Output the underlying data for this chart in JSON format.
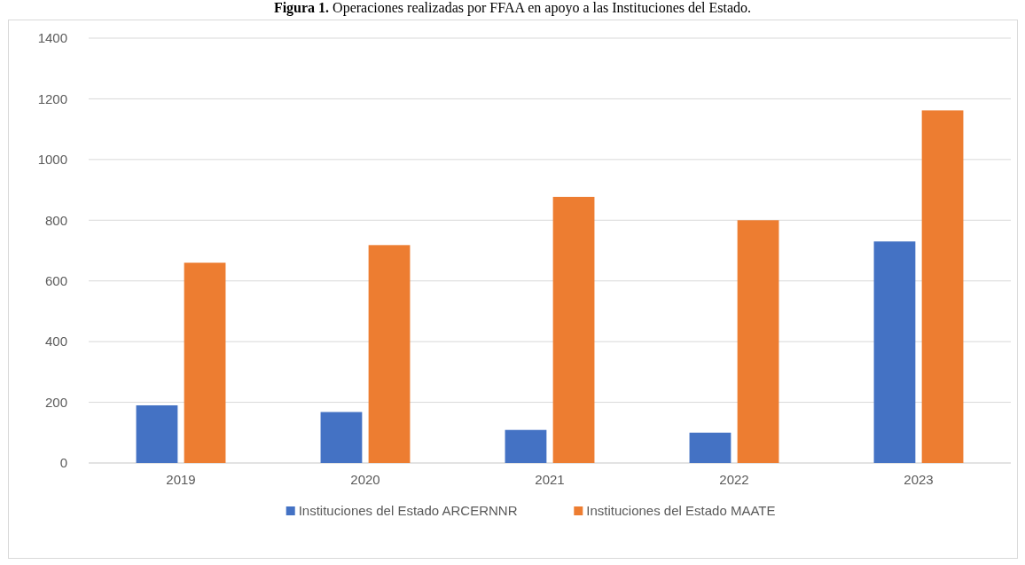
{
  "chart_data": {
    "type": "bar",
    "title": "Figura 1. Operaciones realizadas por FFAA en apoyo a las Instituciones del Estado.",
    "categories": [
      "2019",
      "2020",
      "2021",
      "2022",
      "2023"
    ],
    "series": [
      {
        "name": "Instituciones del Estado ARCERNNR",
        "color": "#4472c4",
        "values": [
          190,
          168,
          109,
          100,
          730
        ]
      },
      {
        "name": "Instituciones del Estado MAATE",
        "color": "#ed7d31",
        "values": [
          660,
          718,
          877,
          800,
          1162
        ]
      }
    ],
    "ylim": [
      0,
      1400
    ],
    "yticks": [
      0,
      200,
      400,
      600,
      800,
      1000,
      1200,
      1400
    ],
    "grid": "y",
    "legend": "bottom"
  }
}
